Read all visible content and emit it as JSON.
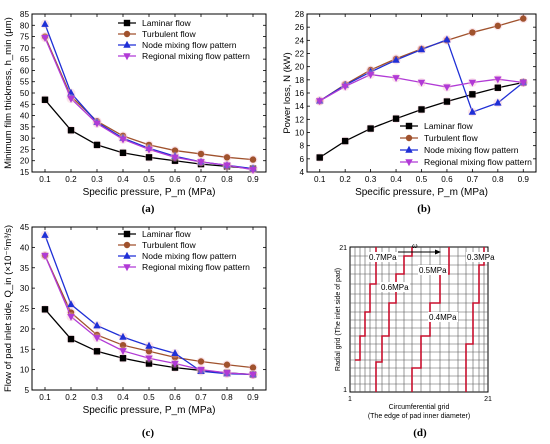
{
  "panels": {
    "a": {
      "caption": "(a)",
      "chart_data": {
        "type": "line",
        "xlabel": "Specific pressure, P_m (MPa)",
        "ylabel": "Minimum film thickness, h_min (μm)",
        "x": [
          0.1,
          0.2,
          0.3,
          0.4,
          0.5,
          0.6,
          0.7,
          0.8,
          0.9
        ],
        "xticks": [
          "0.1",
          "0.2",
          "0.3",
          "0.4",
          "0.5",
          "0.6",
          "0.7",
          "0.8",
          "0.9"
        ],
        "yticks": [
          "15",
          "20",
          "25",
          "30",
          "35",
          "40",
          "45",
          "50",
          "55",
          "60",
          "65",
          "70",
          "75",
          "80",
          "85"
        ],
        "xlim": [
          0.05,
          0.95
        ],
        "ylim": [
          15,
          85
        ],
        "legend_position": "top-right",
        "series": [
          {
            "name": "Laminar flow",
            "color": "#000000",
            "marker": "square",
            "values": [
              47,
              33.5,
              27,
              23.5,
              21.5,
              20,
              18.5,
              17.5,
              16.5
            ]
          },
          {
            "name": "Turbulent flow",
            "color": "#a0522d",
            "marker": "circle",
            "values": [
              75,
              48.5,
              37.5,
              31,
              27,
              24.5,
              23,
              21.5,
              20.5
            ]
          },
          {
            "name": "Node mixing flow pattern",
            "color": "#1f2fd6",
            "marker": "triangle-up",
            "values": [
              80.5,
              50,
              37,
              30,
              25.5,
              22,
              19.5,
              18,
              16.5
            ]
          },
          {
            "name": "Regional mixing flow pattern",
            "color": "#b13ad6",
            "marker": "triangle-down",
            "values": [
              74.5,
              47.5,
              36.5,
              29.5,
              25,
              21.5,
              19.5,
              18,
              16
            ]
          }
        ]
      }
    },
    "b": {
      "caption": "(b)",
      "chart_data": {
        "type": "line",
        "xlabel": "Specific pressure, P_m (MPa)",
        "ylabel": "Power loss, N (kW)",
        "x": [
          0.1,
          0.2,
          0.3,
          0.4,
          0.5,
          0.6,
          0.7,
          0.8,
          0.9
        ],
        "xticks": [
          "0.1",
          "0.2",
          "0.3",
          "0.4",
          "0.5",
          "0.6",
          "0.7",
          "0.8",
          "0.9"
        ],
        "yticks": [
          "4",
          "6",
          "8",
          "10",
          "12",
          "14",
          "16",
          "18",
          "20",
          "22",
          "24",
          "26",
          "28"
        ],
        "xlim": [
          0.05,
          0.95
        ],
        "ylim": [
          4,
          28
        ],
        "legend_position": "bottom-right",
        "series": [
          {
            "name": "Laminar flow",
            "color": "#000000",
            "marker": "square",
            "values": [
              6.2,
              8.7,
              10.6,
              12.1,
              13.5,
              14.7,
              15.8,
              16.8,
              17.6
            ]
          },
          {
            "name": "Turbulent flow",
            "color": "#a0522d",
            "marker": "circle",
            "values": [
              14.8,
              17.3,
              19.5,
              21.2,
              22.7,
              24,
              25.2,
              26.2,
              27.3
            ]
          },
          {
            "name": "Node mixing flow pattern",
            "color": "#1f2fd6",
            "marker": "triangle-up",
            "values": [
              14.8,
              17.2,
              19.2,
              21,
              22.6,
              24.1,
              13.1,
              14.5,
              17.6
            ]
          },
          {
            "name": "Regional mixing flow pattern",
            "color": "#b13ad6",
            "marker": "triangle-down",
            "values": [
              14.8,
              17,
              18.8,
              18.3,
              17.6,
              16.9,
              17.6,
              18.1,
              17.6
            ]
          }
        ]
      }
    },
    "c": {
      "caption": "(c)",
      "chart_data": {
        "type": "line",
        "xlabel": "Specific pressure, P_m (MPa)",
        "ylabel": "Flow of pad inlet side, Q_in (×10⁻⁵m³/s)",
        "x": [
          0.1,
          0.2,
          0.3,
          0.4,
          0.5,
          0.6,
          0.7,
          0.8,
          0.9
        ],
        "xticks": [
          "0.1",
          "0.2",
          "0.3",
          "0.4",
          "0.5",
          "0.6",
          "0.7",
          "0.8",
          "0.9"
        ],
        "yticks": [
          "5",
          "10",
          "15",
          "20",
          "25",
          "30",
          "35",
          "40",
          "45"
        ],
        "xlim": [
          0.05,
          0.95
        ],
        "ylim": [
          5,
          45
        ],
        "legend_position": "top-right",
        "series": [
          {
            "name": "Laminar flow",
            "color": "#000000",
            "marker": "square",
            "values": [
              24.8,
              17.5,
              14.5,
              12.8,
              11.5,
              10.5,
              9.8,
              9.2,
              8.8
            ]
          },
          {
            "name": "Turbulent flow",
            "color": "#a0522d",
            "marker": "circle",
            "values": [
              38,
              24,
              18.5,
              16,
              14.5,
              13,
              12,
              11.2,
              10.5
            ]
          },
          {
            "name": "Node mixing flow pattern",
            "color": "#1f2fd6",
            "marker": "triangle-up",
            "values": [
              43,
              26,
              20.8,
              18,
              15.8,
              14,
              9.6,
              9,
              8.8
            ]
          },
          {
            "name": "Regional mixing flow pattern",
            "color": "#b13ad6",
            "marker": "triangle-down",
            "values": [
              38,
              23,
              17.8,
              14.6,
              12.8,
              11.5,
              10,
              9.2,
              8.8
            ]
          }
        ]
      }
    },
    "d": {
      "caption": "(d)",
      "xlabel_line1": "Circumferential grid",
      "xlabel_line2": "(The edge of pad inner diameter)",
      "ylabel": "Radial grid (The inlet side of pad)",
      "x_start": "1",
      "x_end": "21",
      "y_start": "1",
      "y_end": "21",
      "omega": "ω",
      "labels": [
        "0.7MPa",
        "0.3MPa",
        "0.5MPa",
        "0.6MPa",
        "0.4MPa"
      ],
      "line_color": "#c8102e"
    }
  }
}
